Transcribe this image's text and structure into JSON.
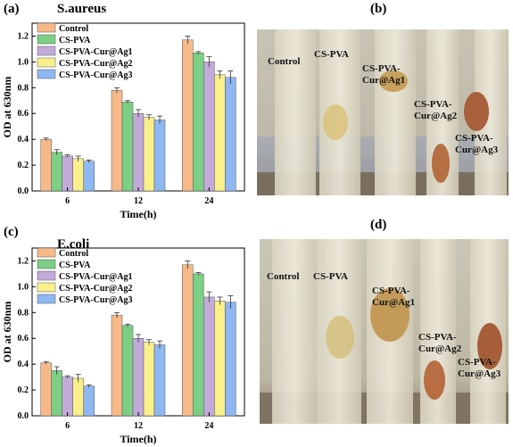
{
  "panels": {
    "a": {
      "label": "(a)",
      "title": "S.aureus"
    },
    "b": {
      "label": "(b)"
    },
    "c": {
      "label": "(c)",
      "title": "E.coli"
    },
    "d": {
      "label": "(d)"
    }
  },
  "chart_data": [
    {
      "type": "bar",
      "title": "S.aureus",
      "xlabel": "Time(h)",
      "ylabel": "OD at 630nm",
      "categories": [
        "6",
        "12",
        "24"
      ],
      "ylim": [
        0,
        1.3
      ],
      "yticks": [
        "0.0",
        "0.2",
        "0.4",
        "0.6",
        "0.8",
        "1.0",
        "1.2"
      ],
      "legend_position": "top-left",
      "series": [
        {
          "name": "Control",
          "color": "#f7b98a",
          "values": [
            0.4,
            0.78,
            1.17
          ],
          "errors": [
            0.01,
            0.02,
            0.03
          ]
        },
        {
          "name": "CS-PVA",
          "color": "#7ccf84",
          "values": [
            0.3,
            0.69,
            1.07
          ],
          "errors": [
            0.02,
            0.01,
            0.01
          ]
        },
        {
          "name": "CS-PVA-Cur@Ag1",
          "color": "#c3abd9",
          "values": [
            0.27,
            0.6,
            1.0
          ],
          "errors": [
            0.01,
            0.03,
            0.04
          ]
        },
        {
          "name": "CS-PVA-Cur@Ag2",
          "color": "#f9f08c",
          "values": [
            0.25,
            0.57,
            0.9
          ],
          "errors": [
            0.02,
            0.02,
            0.03
          ]
        },
        {
          "name": "CS-PVA-Cur@Ag3",
          "color": "#8fb7f2",
          "values": [
            0.23,
            0.55,
            0.88
          ],
          "errors": [
            0.01,
            0.03,
            0.05
          ]
        }
      ]
    },
    {
      "type": "bar",
      "title": "E.coli",
      "xlabel": "Time(h)",
      "ylabel": "OD at 630nm",
      "categories": [
        "6",
        "12",
        "24"
      ],
      "ylim": [
        0,
        1.3
      ],
      "yticks": [
        "0.0",
        "0.2",
        "0.4",
        "0.6",
        "0.8",
        "1.0",
        "1.2"
      ],
      "legend_position": "top-left",
      "series": [
        {
          "name": "Control",
          "color": "#f7b98a",
          "values": [
            0.41,
            0.78,
            1.17
          ],
          "errors": [
            0.01,
            0.02,
            0.03
          ]
        },
        {
          "name": "CS-PVA",
          "color": "#7ccf84",
          "values": [
            0.35,
            0.7,
            1.1
          ],
          "errors": [
            0.03,
            0.01,
            0.01
          ]
        },
        {
          "name": "CS-PVA-Cur@Ag1",
          "color": "#c3abd9",
          "values": [
            0.3,
            0.6,
            0.92
          ],
          "errors": [
            0.01,
            0.03,
            0.04
          ]
        },
        {
          "name": "CS-PVA-Cur@Ag2",
          "color": "#f9f08c",
          "values": [
            0.29,
            0.57,
            0.89
          ],
          "errors": [
            0.03,
            0.02,
            0.03
          ]
        },
        {
          "name": "CS-PVA-Cur@Ag3",
          "color": "#8fb7f2",
          "values": [
            0.23,
            0.55,
            0.88
          ],
          "errors": [
            0.01,
            0.03,
            0.05
          ]
        }
      ]
    }
  ],
  "photos": {
    "b": {
      "labels": [
        "Control",
        "CS-PVA",
        "CS-PVA-\nCur@Ag1",
        "CS-PVA-\nCur@Ag2",
        "CS-PVA-\nCur@Ag3"
      ]
    },
    "d": {
      "labels": [
        "Control",
        "CS-PVA",
        "CS-PVA-\nCur@Ag1",
        "CS-PVA-\nCur@Ag2",
        "CS-PVA-\nCur@Ag3"
      ]
    }
  }
}
